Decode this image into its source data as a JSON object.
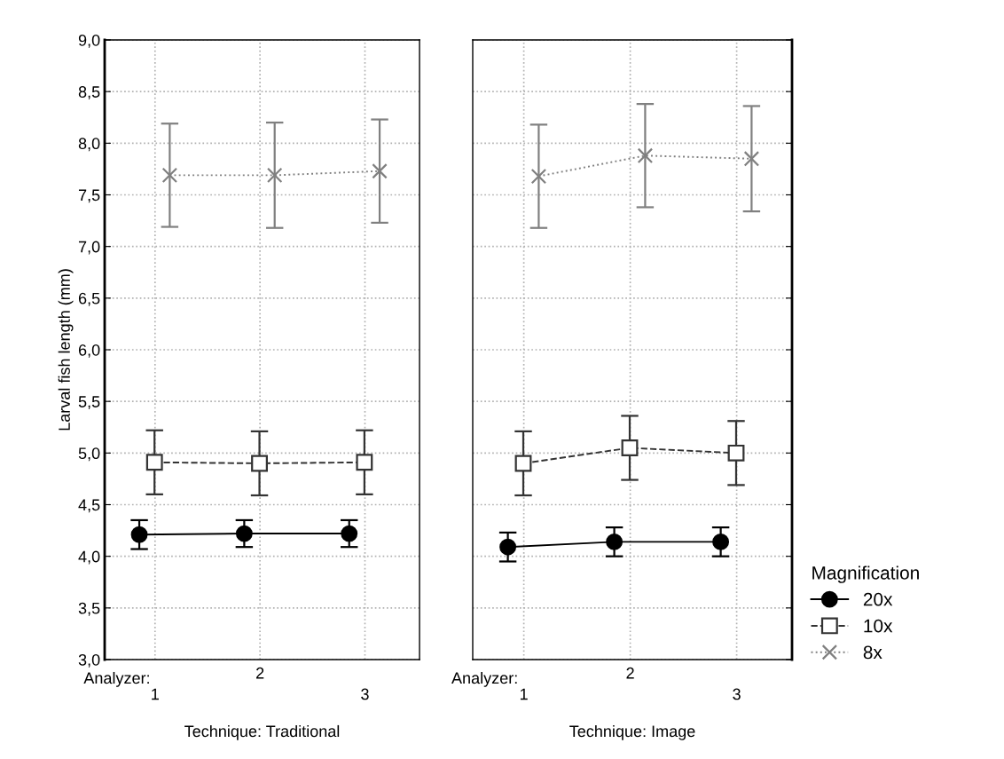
{
  "chart_data": [
    {
      "type": "line",
      "xlabel": "Technique: Traditional",
      "ylabel": "Larval fish length (mm)",
      "annotations": [
        "Analyzer:"
      ],
      "categories": [
        "1",
        "2",
        "3"
      ],
      "ylim": [
        3.0,
        9.0
      ],
      "yticks": [
        {
          "value": 3.0,
          "label": "3,0"
        },
        {
          "value": 3.5,
          "label": "3,5"
        },
        {
          "value": 4.0,
          "label": "4,0"
        },
        {
          "value": 4.5,
          "label": "4,5"
        },
        {
          "value": 5.0,
          "label": "5,0"
        },
        {
          "value": 5.5,
          "label": "5,5"
        },
        {
          "value": 6.0,
          "label": "6,0"
        },
        {
          "value": 6.5,
          "label": "6,5"
        },
        {
          "value": 7.0,
          "label": "7,0"
        },
        {
          "value": 7.5,
          "label": "7,5"
        },
        {
          "value": 8.0,
          "label": "8,0"
        },
        {
          "value": 8.5,
          "label": "8,5"
        },
        {
          "value": 9.0,
          "label": "9,0"
        }
      ],
      "grid": true,
      "legend": "bottom right",
      "legend_title": "Magnification",
      "series": [
        {
          "name": "20x",
          "color": "#000000",
          "marker": "circle",
          "line_style": "solid",
          "values": [
            4.21,
            4.22,
            4.22
          ],
          "errors": [
            0.14,
            0.13,
            0.13
          ]
        },
        {
          "name": "10x",
          "color": "#333333",
          "marker": "square",
          "line_style": "dashed",
          "values": [
            4.91,
            4.9,
            4.91
          ],
          "errors": [
            0.31,
            0.31,
            0.31
          ]
        },
        {
          "name": "8x",
          "color": "#808080",
          "marker": "cross",
          "line_style": "dotted",
          "values": [
            7.69,
            7.69,
            7.73
          ],
          "errors": [
            0.5,
            0.51,
            0.5
          ]
        }
      ]
    },
    {
      "type": "line",
      "xlabel": "Technique: Image",
      "annotations": [
        "Analyzer:"
      ],
      "categories": [
        "1",
        "2",
        "3"
      ],
      "ylim": [
        3.0,
        9.0
      ],
      "yticks": [
        3.0,
        3.5,
        4.0,
        4.5,
        5.0,
        5.5,
        6.0,
        6.5,
        7.0,
        7.5,
        8.0,
        8.5,
        9.0
      ],
      "tick_labels": "x",
      "grid": true,
      "series": [
        {
          "color": "#000000",
          "marker": "circle",
          "line_style": "solid",
          "values": [
            4.09,
            4.14,
            4.14
          ],
          "errors": [
            0.14,
            0.14,
            0.14
          ]
        },
        {
          "color": "#333333",
          "marker": "square",
          "line_style": "dashed",
          "values": [
            4.9,
            5.05,
            5.0
          ],
          "errors": [
            0.31,
            0.31,
            0.31
          ]
        },
        {
          "color": "#808080",
          "marker": "cross",
          "line_style": "dotted",
          "values": [
            7.68,
            7.88,
            7.85
          ],
          "errors": [
            0.5,
            0.5,
            0.51
          ]
        }
      ]
    }
  ]
}
